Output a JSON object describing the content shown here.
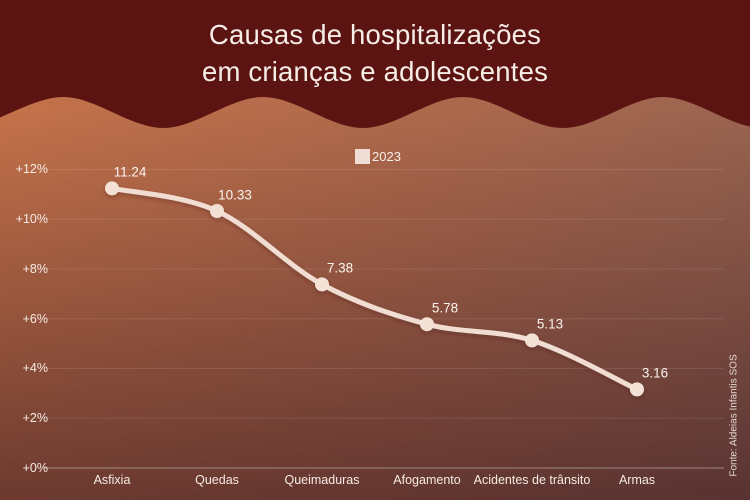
{
  "header": {
    "title_line1": "Causas de hospitalizações",
    "title_line2": "em crianças e adolescentes"
  },
  "legend": {
    "label": "2023",
    "swatch_color": "#f0ded6"
  },
  "source": {
    "text": "Fonte: Aldeias Infantis SOS"
  },
  "colors": {
    "header_bg": "#5b1411",
    "line": "#f2ddd2",
    "marker": "#f4e1d6",
    "axis_line": "rgba(255,255,255,0.40)",
    "grid_line": "rgba(255,255,255,0.10)",
    "bg_left": "#c4724a",
    "bg_right": "#9a6450"
  },
  "chart_data": {
    "type": "line",
    "title": "Causas de hospitalizações em crianças e adolescentes",
    "categories": [
      "Asfixia",
      "Quedas",
      "Queimaduras",
      "Afogamento",
      "Acidentes de trânsito",
      "Armas"
    ],
    "series": [
      {
        "name": "2023",
        "values": [
          11.24,
          10.33,
          7.38,
          5.78,
          5.13,
          3.16
        ]
      }
    ],
    "point_labels": [
      "11.24",
      "10.33",
      "7.38",
      "5.78",
      "5.13",
      "3.16"
    ],
    "xlabel": "",
    "ylabel": "",
    "ylim": [
      0,
      12
    ],
    "y_ticks": [
      {
        "value": 0,
        "label": "+0%"
      },
      {
        "value": 2,
        "label": "+2%"
      },
      {
        "value": 4,
        "label": "+4%"
      },
      {
        "value": 6,
        "label": "+6%"
      },
      {
        "value": 8,
        "label": "+8%"
      },
      {
        "value": 10,
        "label": "+10%"
      },
      {
        "value": 12,
        "label": "+12%"
      }
    ],
    "grid": true,
    "legend_position": "top-center"
  }
}
